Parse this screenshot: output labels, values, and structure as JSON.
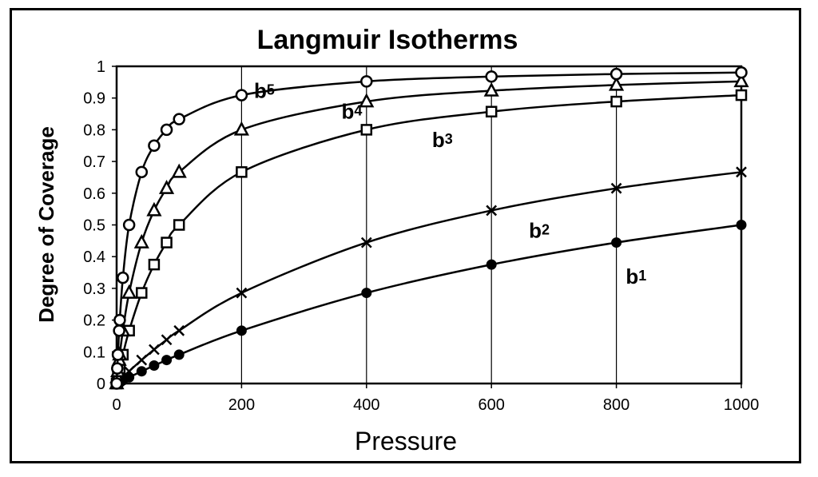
{
  "chart_data": {
    "type": "line",
    "title": "Langmuir Isotherms",
    "xlabel": "Pressure",
    "ylabel": "Degree of Coverage",
    "xlim": [
      0,
      1000
    ],
    "ylim": [
      0,
      1
    ],
    "x_ticks": [
      "0",
      "200",
      "400",
      "600",
      "800",
      "1000"
    ],
    "y_ticks": [
      "0",
      "0.1",
      "0.2",
      "0.3",
      "0.4",
      "0.5",
      "0.6",
      "0.7",
      "0.8",
      "0.9",
      "1"
    ],
    "grid": "vertical",
    "legend": "none",
    "x": [
      0,
      1,
      2,
      4,
      5,
      10,
      20,
      40,
      60,
      80,
      100,
      200,
      400,
      600,
      800,
      1000
    ],
    "series": [
      {
        "name": "b1",
        "marker": "circle-filled",
        "values": [
          0,
          0.001,
          0.002,
          0.004,
          0.005,
          0.0099,
          0.0196,
          0.0385,
          0.0566,
          0.0741,
          0.0909,
          0.1667,
          0.2857,
          0.375,
          0.4444,
          0.5
        ]
      },
      {
        "name": "b2",
        "marker": "x",
        "values": [
          0,
          0.002,
          0.004,
          0.0079,
          0.0099,
          0.0196,
          0.0385,
          0.0741,
          0.1071,
          0.1379,
          0.1667,
          0.2857,
          0.4444,
          0.5455,
          0.6154,
          0.6667
        ]
      },
      {
        "name": "b3",
        "marker": "square",
        "values": [
          0,
          0.0099,
          0.0196,
          0.0385,
          0.0476,
          0.0909,
          0.1667,
          0.2857,
          0.375,
          0.4444,
          0.5,
          0.6667,
          0.8,
          0.8571,
          0.8889,
          0.9091
        ]
      },
      {
        "name": "b4",
        "marker": "triangle",
        "values": [
          0,
          0.0196,
          0.0385,
          0.0741,
          0.0909,
          0.1667,
          0.2857,
          0.4444,
          0.5455,
          0.6154,
          0.6667,
          0.8,
          0.8889,
          0.9231,
          0.9412,
          0.9524
        ]
      },
      {
        "name": "b5",
        "marker": "circle-open",
        "values": [
          0,
          0.0476,
          0.0909,
          0.1667,
          0.2,
          0.3333,
          0.5,
          0.6667,
          0.75,
          0.8,
          0.8333,
          0.9091,
          0.9524,
          0.9677,
          0.9756,
          0.9804
        ]
      }
    ],
    "series_labels": [
      {
        "base": "b",
        "sub": "5",
        "at": [
          220,
          0.9
        ]
      },
      {
        "base": "b",
        "sub": "4",
        "at": [
          360,
          0.835
        ]
      },
      {
        "base": "b",
        "sub": "3",
        "at": [
          505,
          0.745
        ]
      },
      {
        "base": "b",
        "sub": "2",
        "at": [
          660,
          0.46
        ]
      },
      {
        "base": "b",
        "sub": "1",
        "at": [
          815,
          0.315
        ]
      }
    ],
    "colors": {
      "line": "#000000",
      "background": "#ffffff"
    }
  }
}
